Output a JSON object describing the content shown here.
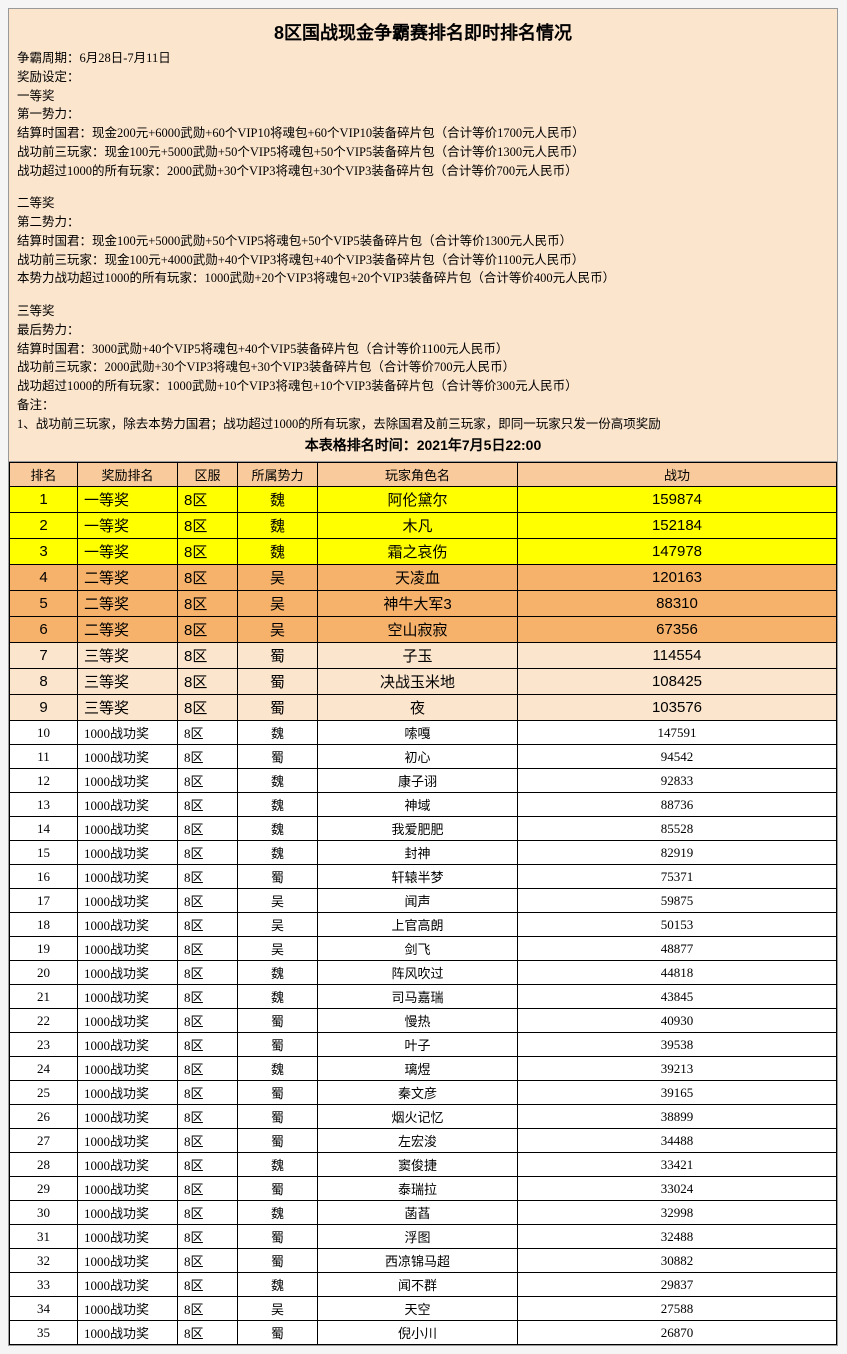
{
  "colors": {
    "page_bg": "#f5f5f5",
    "info_bg": "#fce5cd",
    "header_bg": "#f9cb9c",
    "tier1_bg": "#ffff00",
    "tier2_bg": "#f6b26b",
    "tier3_bg": "#fce5cd",
    "default_bg": "#ffffff",
    "border": "#000000"
  },
  "title": "8区国战现金争霸赛排名即时排名情况",
  "info_lines": [
    "争霸周期：6月28日-7月11日",
    "奖励设定：",
    "一等奖",
    "第一势力：",
    "结算时国君：现金200元+6000武勋+60个VIP10将魂包+60个VIP10装备碎片包（合计等价1700元人民币）",
    "战功前三玩家：现金100元+5000武勋+50个VIP5将魂包+50个VIP5装备碎片包（合计等价1300元人民币）",
    "战功超过1000的所有玩家：2000武勋+30个VIP3将魂包+30个VIP3装备碎片包（合计等价700元人民币）",
    "",
    "二等奖",
    "第二势力：",
    "结算时国君：现金100元+5000武勋+50个VIP5将魂包+50个VIP5装备碎片包（合计等价1300元人民币）",
    "战功前三玩家：现金100元+4000武勋+40个VIP3将魂包+40个VIP3装备碎片包（合计等价1100元人民币）",
    "本势力战功超过1000的所有玩家：1000武勋+20个VIP3将魂包+20个VIP3装备碎片包（合计等价400元人民币）",
    "",
    "三等奖",
    "最后势力：",
    "结算时国君：3000武勋+40个VIP5将魂包+40个VIP5装备碎片包（合计等价1100元人民币）",
    "战功前三玩家：2000武勋+30个VIP3将魂包+30个VIP3装备碎片包（合计等价700元人民币）",
    "战功超过1000的所有玩家：1000武勋+10个VIP3将魂包+10个VIP3装备碎片包（合计等价300元人民币）",
    "备注：",
    "1、战功前三玩家，除去本势力国君；战功超过1000的所有玩家，去除国君及前三玩家，即同一玩家只发一份高项奖励"
  ],
  "table_time": "本表格排名时间：2021年7月5日22:00",
  "headers": [
    "排名",
    "奖励排名",
    "区服",
    "所属势力",
    "玩家角色名",
    "战功"
  ],
  "rows": [
    {
      "rank": 1,
      "award": "一等奖",
      "zone": "8区",
      "fac": "魏",
      "name": "阿伦黛尔",
      "score": 159874,
      "tier": 1
    },
    {
      "rank": 2,
      "award": "一等奖",
      "zone": "8区",
      "fac": "魏",
      "name": "木凡",
      "score": 152184,
      "tier": 1
    },
    {
      "rank": 3,
      "award": "一等奖",
      "zone": "8区",
      "fac": "魏",
      "name": "霜之哀伤",
      "score": 147978,
      "tier": 1
    },
    {
      "rank": 4,
      "award": "二等奖",
      "zone": "8区",
      "fac": "吴",
      "name": "天凌血",
      "score": 120163,
      "tier": 2
    },
    {
      "rank": 5,
      "award": "二等奖",
      "zone": "8区",
      "fac": "吴",
      "name": "神牛大军3",
      "score": 88310,
      "tier": 2
    },
    {
      "rank": 6,
      "award": "二等奖",
      "zone": "8区",
      "fac": "吴",
      "name": "空山寂寂",
      "score": 67356,
      "tier": 2
    },
    {
      "rank": 7,
      "award": "三等奖",
      "zone": "8区",
      "fac": "蜀",
      "name": "子玉",
      "score": 114554,
      "tier": 3
    },
    {
      "rank": 8,
      "award": "三等奖",
      "zone": "8区",
      "fac": "蜀",
      "name": "决战玉米地",
      "score": 108425,
      "tier": 3
    },
    {
      "rank": 9,
      "award": "三等奖",
      "zone": "8区",
      "fac": "蜀",
      "name": "夜",
      "score": 103576,
      "tier": 3
    },
    {
      "rank": 10,
      "award": "1000战功奖",
      "zone": "8区",
      "fac": "魏",
      "name": "嗦嘎",
      "score": 147591,
      "tier": 0
    },
    {
      "rank": 11,
      "award": "1000战功奖",
      "zone": "8区",
      "fac": "蜀",
      "name": "初心",
      "score": 94542,
      "tier": 0
    },
    {
      "rank": 12,
      "award": "1000战功奖",
      "zone": "8区",
      "fac": "魏",
      "name": "康子诩",
      "score": 92833,
      "tier": 0
    },
    {
      "rank": 13,
      "award": "1000战功奖",
      "zone": "8区",
      "fac": "魏",
      "name": "神域",
      "score": 88736,
      "tier": 0
    },
    {
      "rank": 14,
      "award": "1000战功奖",
      "zone": "8区",
      "fac": "魏",
      "name": "我爱肥肥",
      "score": 85528,
      "tier": 0
    },
    {
      "rank": 15,
      "award": "1000战功奖",
      "zone": "8区",
      "fac": "魏",
      "name": "封神",
      "score": 82919,
      "tier": 0
    },
    {
      "rank": 16,
      "award": "1000战功奖",
      "zone": "8区",
      "fac": "蜀",
      "name": "轩辕半梦",
      "score": 75371,
      "tier": 0
    },
    {
      "rank": 17,
      "award": "1000战功奖",
      "zone": "8区",
      "fac": "吴",
      "name": "闻声",
      "score": 59875,
      "tier": 0
    },
    {
      "rank": 18,
      "award": "1000战功奖",
      "zone": "8区",
      "fac": "吴",
      "name": "上官高朗",
      "score": 50153,
      "tier": 0
    },
    {
      "rank": 19,
      "award": "1000战功奖",
      "zone": "8区",
      "fac": "吴",
      "name": "剑飞",
      "score": 48877,
      "tier": 0
    },
    {
      "rank": 20,
      "award": "1000战功奖",
      "zone": "8区",
      "fac": "魏",
      "name": "阵风吹过",
      "score": 44818,
      "tier": 0
    },
    {
      "rank": 21,
      "award": "1000战功奖",
      "zone": "8区",
      "fac": "魏",
      "name": "司马嘉瑞",
      "score": 43845,
      "tier": 0
    },
    {
      "rank": 22,
      "award": "1000战功奖",
      "zone": "8区",
      "fac": "蜀",
      "name": "慢热",
      "score": 40930,
      "tier": 0
    },
    {
      "rank": 23,
      "award": "1000战功奖",
      "zone": "8区",
      "fac": "蜀",
      "name": "叶子",
      "score": 39538,
      "tier": 0
    },
    {
      "rank": 24,
      "award": "1000战功奖",
      "zone": "8区",
      "fac": "魏",
      "name": "璃煜",
      "score": 39213,
      "tier": 0
    },
    {
      "rank": 25,
      "award": "1000战功奖",
      "zone": "8区",
      "fac": "蜀",
      "name": "秦文彦",
      "score": 39165,
      "tier": 0
    },
    {
      "rank": 26,
      "award": "1000战功奖",
      "zone": "8区",
      "fac": "蜀",
      "name": "烟火记忆",
      "score": 38899,
      "tier": 0
    },
    {
      "rank": 27,
      "award": "1000战功奖",
      "zone": "8区",
      "fac": "蜀",
      "name": "左宏浚",
      "score": 34488,
      "tier": 0
    },
    {
      "rank": 28,
      "award": "1000战功奖",
      "zone": "8区",
      "fac": "魏",
      "name": "窦俊捷",
      "score": 33421,
      "tier": 0
    },
    {
      "rank": 29,
      "award": "1000战功奖",
      "zone": "8区",
      "fac": "蜀",
      "name": "泰瑞拉",
      "score": 33024,
      "tier": 0
    },
    {
      "rank": 30,
      "award": "1000战功奖",
      "zone": "8区",
      "fac": "魏",
      "name": "菡萏",
      "score": 32998,
      "tier": 0
    },
    {
      "rank": 31,
      "award": "1000战功奖",
      "zone": "8区",
      "fac": "蜀",
      "name": "浮图",
      "score": 32488,
      "tier": 0
    },
    {
      "rank": 32,
      "award": "1000战功奖",
      "zone": "8区",
      "fac": "蜀",
      "name": "西凉锦马超",
      "score": 30882,
      "tier": 0
    },
    {
      "rank": 33,
      "award": "1000战功奖",
      "zone": "8区",
      "fac": "魏",
      "name": "闻不群",
      "score": 29837,
      "tier": 0
    },
    {
      "rank": 34,
      "award": "1000战功奖",
      "zone": "8区",
      "fac": "吴",
      "name": "天空",
      "score": 27588,
      "tier": 0
    },
    {
      "rank": 35,
      "award": "1000战功奖",
      "zone": "8区",
      "fac": "蜀",
      "name": "倪小川",
      "score": 26870,
      "tier": 0
    }
  ],
  "tier_fontsize": {
    "top9": "15px",
    "default": "13px"
  }
}
